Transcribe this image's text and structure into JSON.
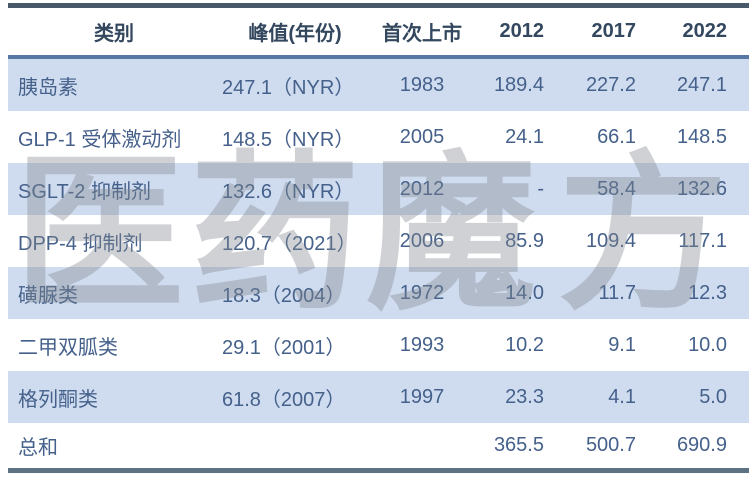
{
  "chart_data": {
    "type": "table",
    "title": "",
    "columns": [
      "类别",
      "峰值(年份)",
      "首次上市",
      "2012",
      "2017",
      "2022"
    ],
    "rows": [
      [
        "胰岛素",
        "247.1（NYR）",
        "1983",
        "189.4",
        "227.2",
        "247.1"
      ],
      [
        "GLP-1 受体激动剂",
        "148.5（NYR）",
        "2005",
        "24.1",
        "66.1",
        "148.5"
      ],
      [
        "SGLT-2 抑制剂",
        "132.6（NYR）",
        "2012",
        "-",
        "58.4",
        "132.6"
      ],
      [
        "DPP-4 抑制剂",
        "120.7（2021）",
        "2006",
        "85.9",
        "109.4",
        "117.1"
      ],
      [
        "磺脲类",
        "18.3（2004）",
        "1972",
        "14.0",
        "11.7",
        "12.3"
      ],
      [
        "二甲双胍类",
        "29.1（2001）",
        "1993",
        "10.2",
        "9.1",
        "10.0"
      ],
      [
        "格列酮类",
        "61.8（2007）",
        "1997",
        "23.3",
        "4.1",
        "5.0"
      ],
      [
        "总和",
        "",
        "",
        "365.5",
        "500.7",
        "690.9"
      ]
    ],
    "layout_hints": {
      "row_shading": "alternating starting shaded on first data row",
      "column_align": [
        "left",
        "left",
        "center",
        "right",
        "right",
        "right"
      ]
    }
  },
  "watermark": {
    "full": "医药魔方",
    "part1": "医药",
    "part2": "魔方"
  },
  "colors": {
    "top_border": "#48596a",
    "header_rule": "#5778a4",
    "row_shade": "#cfdcef",
    "bottom_border": "#5d7282",
    "header_text": "#33475e",
    "body_text": "#45618b",
    "watermark_gray": "#80868d"
  }
}
